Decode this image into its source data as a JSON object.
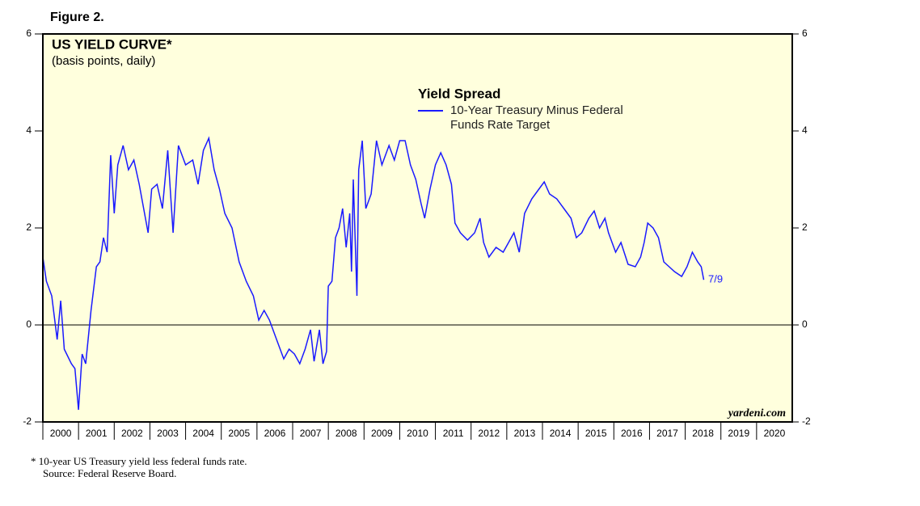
{
  "figure_label": "Figure 2.",
  "chart_data": {
    "type": "line",
    "title": "US YIELD CURVE*",
    "subtitle": "(basis points, daily)",
    "legend_title": "Yield Spread",
    "annotation": "7/9",
    "watermark": "yardeni.com",
    "footnote": "*  10-year US Treasury yield less federal funds rate.",
    "source": "Source: Federal Reserve Board.",
    "x": [
      2000.0,
      2000.1,
      2000.25,
      2000.4,
      2000.5,
      2000.6,
      2000.8,
      2000.9,
      2001.0,
      2001.1,
      2001.2,
      2001.35,
      2001.5,
      2001.6,
      2001.7,
      2001.8,
      2001.9,
      2002.0,
      2002.1,
      2002.25,
      2002.4,
      2002.55,
      2002.7,
      2002.8,
      2002.95,
      2003.05,
      2003.2,
      2003.35,
      2003.5,
      2003.65,
      2003.8,
      2004.0,
      2004.2,
      2004.35,
      2004.5,
      2004.65,
      2004.8,
      2004.95,
      2005.1,
      2005.3,
      2005.5,
      2005.7,
      2005.9,
      2006.05,
      2006.2,
      2006.35,
      2006.55,
      2006.75,
      2006.9,
      2007.05,
      2007.2,
      2007.35,
      2007.5,
      2007.6,
      2007.75,
      2007.85,
      2007.95,
      2008.0,
      2008.1,
      2008.2,
      2008.3,
      2008.4,
      2008.5,
      2008.6,
      2008.65,
      2008.7,
      2008.8,
      2008.85,
      2008.95,
      2009.05,
      2009.2,
      2009.35,
      2009.5,
      2009.7,
      2009.85,
      2010.0,
      2010.15,
      2010.3,
      2010.45,
      2010.6,
      2010.7,
      2010.85,
      2011.0,
      2011.15,
      2011.3,
      2011.45,
      2011.55,
      2011.7,
      2011.9,
      2012.1,
      2012.25,
      2012.35,
      2012.5,
      2012.7,
      2012.9,
      2013.05,
      2013.2,
      2013.35,
      2013.5,
      2013.7,
      2013.9,
      2014.05,
      2014.2,
      2014.4,
      2014.6,
      2014.8,
      2014.95,
      2015.1,
      2015.3,
      2015.45,
      2015.6,
      2015.75,
      2015.85,
      2016.05,
      2016.2,
      2016.4,
      2016.6,
      2016.75,
      2016.85,
      2016.95,
      2017.1,
      2017.25,
      2017.4,
      2017.55,
      2017.7,
      2017.9,
      2018.05,
      2018.2,
      2018.35,
      2018.45,
      2018.52
    ],
    "series": [
      {
        "name": "10-Year Treasury Minus Federal Funds Rate Target",
        "color": "#1a1aff",
        "values": [
          1.4,
          0.9,
          0.6,
          -0.3,
          0.5,
          -0.5,
          -0.8,
          -0.9,
          -1.75,
          -0.6,
          -0.8,
          0.3,
          1.2,
          1.3,
          1.8,
          1.5,
          3.5,
          2.3,
          3.3,
          3.7,
          3.2,
          3.4,
          2.9,
          2.5,
          1.9,
          2.8,
          2.9,
          2.4,
          3.6,
          1.9,
          3.7,
          3.3,
          3.4,
          2.9,
          3.6,
          3.85,
          3.2,
          2.8,
          2.3,
          2.0,
          1.3,
          0.9,
          0.6,
          0.1,
          0.3,
          0.1,
          -0.3,
          -0.7,
          -0.5,
          -0.6,
          -0.8,
          -0.5,
          -0.1,
          -0.75,
          -0.1,
          -0.8,
          -0.55,
          0.8,
          0.9,
          1.8,
          2.0,
          2.4,
          1.6,
          2.3,
          1.1,
          3.0,
          0.6,
          3.2,
          3.8,
          2.4,
          2.7,
          3.8,
          3.3,
          3.7,
          3.4,
          3.8,
          3.8,
          3.3,
          3.0,
          2.5,
          2.2,
          2.8,
          3.3,
          3.55,
          3.3,
          2.9,
          2.1,
          1.9,
          1.75,
          1.9,
          2.2,
          1.7,
          1.4,
          1.6,
          1.5,
          1.7,
          1.9,
          1.5,
          2.3,
          2.6,
          2.8,
          2.95,
          2.7,
          2.6,
          2.4,
          2.2,
          1.8,
          1.9,
          2.2,
          2.35,
          2.0,
          2.2,
          1.9,
          1.5,
          1.7,
          1.25,
          1.2,
          1.4,
          1.7,
          2.1,
          2.0,
          1.8,
          1.3,
          1.2,
          1.1,
          1.0,
          1.2,
          1.5,
          1.3,
          1.2,
          0.93
        ]
      }
    ],
    "xlim": [
      2000,
      2021
    ],
    "xticks": [
      2000,
      2001,
      2002,
      2003,
      2004,
      2005,
      2006,
      2007,
      2008,
      2009,
      2010,
      2011,
      2012,
      2013,
      2014,
      2015,
      2016,
      2017,
      2018,
      2019,
      2020
    ],
    "ylim": [
      -2,
      6
    ],
    "yticks": [
      -2,
      0,
      2,
      4,
      6
    ],
    "y2lim": [
      -2,
      6
    ],
    "y2ticks": [
      -2,
      0,
      2,
      4,
      6
    ],
    "background": "#ffffdd"
  }
}
